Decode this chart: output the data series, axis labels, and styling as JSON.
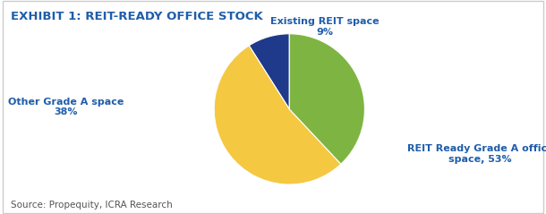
{
  "title": "EXHIBIT 1: REIT-READY OFFICE STOCK",
  "title_color": "#1F5DAA",
  "title_fontsize": 9.5,
  "slices": [
    9,
    53,
    38
  ],
  "colors": [
    "#1F3A8A",
    "#F5C842",
    "#7EB542"
  ],
  "startangle": 90,
  "source_text": "Source: Propequity, ICRA Research",
  "source_fontsize": 7.5,
  "background_color": "#FFFFFF",
  "label_color": "#1F5DAA",
  "label_fontsize": 8.0
}
